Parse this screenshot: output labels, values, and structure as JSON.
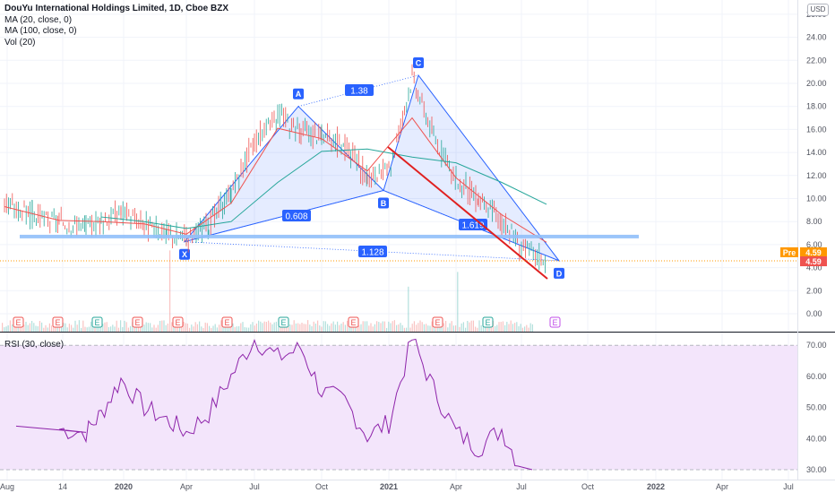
{
  "legend": {
    "title": "DouYu International Holdings Limited, 1D, Cboe BZX",
    "ma20": "MA (20, close, 0)",
    "ma100": "MA (100, close, 0)",
    "vol": "Vol (20)"
  },
  "rsi_legend": "RSI (30, close)",
  "currency": "USD",
  "price_badges": {
    "pre_label": "Pre",
    "pre_value": "4.59",
    "last_value": "4.59"
  },
  "colors": {
    "up": "#26a69a",
    "down": "#ef5350",
    "ma20": "#ef5350",
    "ma100": "#26a69a",
    "harmonic_fill": "#2962ff",
    "support": "#90bff9",
    "trend_line": "#e02020",
    "rsi_line": "#8e24aa",
    "rsi_fill": "#f3e5fb",
    "pre_badge": "#ff9800",
    "last_badge": "#ef5350"
  },
  "chart_data": [
    {
      "type": "line",
      "title": "DouYu International Holdings Limited, 1D, Cboe BZX",
      "xlabel": "",
      "ylabel": "USD",
      "x_ticks": [
        "Aug",
        "14",
        "2020",
        "Apr",
        "Jul",
        "Oct",
        "2021",
        "Apr",
        "Jul",
        "Oct",
        "2022",
        "Apr",
        "Jul"
      ],
      "y_ticks": [
        "0.00",
        "2.00",
        "4.00",
        "6.00",
        "8.00",
        "10.00",
        "12.00",
        "14.00",
        "16.00",
        "18.00",
        "20.00",
        "22.00",
        "24.00",
        "26.00"
      ],
      "ylim": [
        -0.8,
        26.5
      ],
      "series": [
        {
          "name": "price",
          "x": [
            "2019-08",
            "2019-09",
            "2019-10",
            "2019-11",
            "2019-12",
            "2020-01",
            "2020-02",
            "2020-03",
            "2020-04",
            "2020-05",
            "2020-06",
            "2020-07",
            "2020-08",
            "2020-09",
            "2020-10",
            "2020-11",
            "2020-12",
            "2021-01",
            "2021-02",
            "2021-03",
            "2021-04",
            "2021-05",
            "2021-06",
            "2021-07",
            "2021-08"
          ],
          "values": [
            9.5,
            8.5,
            7.9,
            7.6,
            8.1,
            8.9,
            7.7,
            6.9,
            6.6,
            7.7,
            10.5,
            15.0,
            17.4,
            15.9,
            15.4,
            14.6,
            11.8,
            12.3,
            20.6,
            15.4,
            11.6,
            9.9,
            8.1,
            5.8,
            4.6
          ]
        },
        {
          "name": "MA (20, close, 0)",
          "x": [
            "2019-08",
            "2019-10",
            "2019-12",
            "2020-02",
            "2020-04",
            "2020-06",
            "2020-08",
            "2020-10",
            "2020-12",
            "2021-02",
            "2021-04",
            "2021-06",
            "2021-08"
          ],
          "values": [
            9.3,
            8.1,
            8.0,
            7.8,
            6.9,
            9.6,
            16.1,
            15.2,
            12.4,
            17.0,
            11.8,
            8.6,
            6.2
          ]
        },
        {
          "name": "MA (100, close, 0)",
          "x": [
            "2019-12",
            "2020-02",
            "2020-04",
            "2020-06",
            "2020-08",
            "2020-10",
            "2020-12",
            "2021-02",
            "2021-04",
            "2021-06",
            "2021-08"
          ],
          "values": [
            8.4,
            8.0,
            7.4,
            8.0,
            11.4,
            14.1,
            14.3,
            13.6,
            13.1,
            11.4,
            9.5
          ]
        }
      ],
      "harmonic_points": [
        {
          "label": "X",
          "price": 6.25
        },
        {
          "label": "A",
          "price": 18.0
        },
        {
          "label": "B",
          "price": 10.7
        },
        {
          "label": "C",
          "price": 20.7
        },
        {
          "label": "D",
          "price": 4.6
        }
      ],
      "ratios": [
        "0.608",
        "1.38",
        "1.619",
        "1.128"
      ],
      "support_level": 6.7
    },
    {
      "type": "bar",
      "title": "Vol (20)",
      "events": [
        "E",
        "E",
        "E",
        "E",
        "E",
        "E",
        "E",
        "E",
        "E",
        "E",
        "E"
      ]
    },
    {
      "type": "line",
      "title": "RSI (30, close)",
      "y_ticks": [
        "30.00",
        "40.00",
        "50.00",
        "60.00",
        "70.00"
      ],
      "ylim": [
        28,
        74
      ],
      "bands": [
        30,
        70
      ],
      "series": [
        {
          "name": "RSI (30, close)",
          "x": [
            "2019-08",
            "2019-09",
            "2019-10",
            "2019-11",
            "2019-12",
            "2020-01",
            "2020-02",
            "2020-03",
            "2020-04",
            "2020-05",
            "2020-06",
            "2020-07",
            "2020-08",
            "2020-09",
            "2020-10",
            "2020-11",
            "2020-12",
            "2021-01",
            "2021-02",
            "2021-03",
            "2021-04",
            "2021-05",
            "2021-06",
            "2021-07"
          ],
          "values": [
            44,
            43.5,
            43,
            42,
            48,
            59,
            50,
            46,
            42,
            48,
            60,
            72,
            66,
            69,
            55,
            52,
            41,
            45,
            72,
            56,
            42,
            37,
            43,
            30
          ]
        }
      ]
    }
  ]
}
